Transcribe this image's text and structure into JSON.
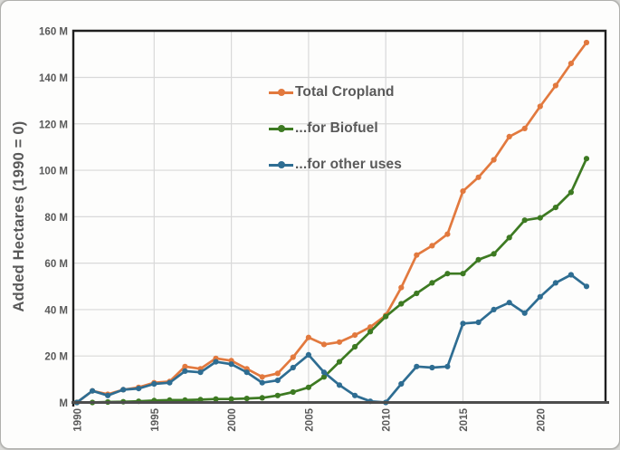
{
  "axis": {
    "y_title": "Added Hectares (1990 = 0)",
    "y_ticks": [
      0,
      20,
      40,
      60,
      80,
      100,
      120,
      140,
      160
    ],
    "y_tick_labels": [
      "M",
      "20 M",
      "40 M",
      "60 M",
      "80 M",
      "100 M",
      "120 M",
      "140 M",
      "160 M"
    ],
    "x_tick_years": [
      1990,
      1995,
      2000,
      2005,
      2010,
      2015,
      2020
    ],
    "x_tick_labels": [
      "1990",
      "1995",
      "2000",
      "2005",
      "2010",
      "2015",
      "2020"
    ]
  },
  "colors": {
    "grid": "#d9d9d9",
    "plot_border": "#1f1f1f",
    "zero_axis": "#4d4d4d",
    "label_text": "#595959",
    "orange": "#e2793e",
    "green": "#3d7a22",
    "blue": "#2e6d92"
  },
  "chart_data": {
    "type": "line",
    "title": "",
    "xlabel": "",
    "ylabel": "Added Hectares (1990 = 0)",
    "ylim": [
      0,
      160
    ],
    "xlim": [
      1990,
      2023
    ],
    "grid": true,
    "legend_position": "upper-center",
    "marker": "circle",
    "x": [
      1990,
      1991,
      1992,
      1993,
      1994,
      1995,
      1996,
      1997,
      1998,
      1999,
      2000,
      2001,
      2002,
      2003,
      2004,
      2005,
      2006,
      2007,
      2008,
      2009,
      2010,
      2011,
      2012,
      2013,
      2014,
      2015,
      2016,
      2017,
      2018,
      2019,
      2020,
      2021,
      2022,
      2023
    ],
    "series": [
      {
        "name": "Total Cropland",
        "color": "#e2793e",
        "values": [
          0,
          5,
          3.5,
          5.5,
          6.5,
          8.5,
          9,
          15.5,
          14.5,
          19,
          18,
          14.5,
          11,
          12.5,
          19.5,
          28,
          25,
          26,
          29,
          32.5,
          37.5,
          49.5,
          63.5,
          67.5,
          72.5,
          91,
          97,
          104.5,
          114.5,
          118,
          127.5,
          136.5,
          146,
          155
        ]
      },
      {
        "name": "...for Biofuel",
        "color": "#3d7a22",
        "values": [
          0,
          0,
          0.2,
          0.3,
          0.5,
          0.8,
          1,
          1,
          1.2,
          1.5,
          1.5,
          1.7,
          2,
          3,
          4.5,
          6.5,
          11,
          17.5,
          24,
          30.5,
          37,
          42.5,
          47,
          51.5,
          55.5,
          55.5,
          61.5,
          64,
          71,
          78.5,
          79.5,
          84,
          90.5,
          105
        ]
      },
      {
        "name": "...for other uses",
        "color": "#2e6d92",
        "values": [
          0,
          5,
          3,
          5.5,
          6,
          8,
          8.5,
          13.5,
          13,
          17.5,
          16.5,
          13,
          8.5,
          9.5,
          15,
          20.5,
          13,
          7.5,
          3,
          0.5,
          0,
          8,
          15.5,
          15,
          15.5,
          34,
          34.5,
          40,
          43,
          38.5,
          45.5,
          51.5,
          55,
          50
        ]
      }
    ]
  }
}
